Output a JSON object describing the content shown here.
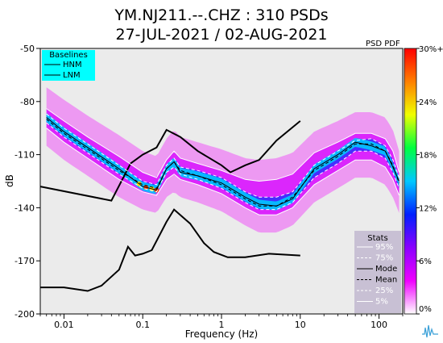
{
  "chart_data": {
    "type": "heatmap",
    "title": "YM.NJ211.--.CHZ : 310 PSDs",
    "subtitle": "27-JUL-2021 / 02-AUG-2021",
    "xlabel": "Frequency (Hz)",
    "ylabel": "dB",
    "x_scale": "log",
    "xlim": [
      0.005,
      200
    ],
    "ylim": [
      -200,
      -50
    ],
    "x_ticks": [
      0.01,
      0.1,
      1,
      10,
      100
    ],
    "x_tick_labels": [
      "0.01",
      "0.1",
      "1",
      "10",
      "100"
    ],
    "y_ticks": [
      -50,
      -80,
      -110,
      -140,
      -170,
      -200
    ],
    "y_tick_labels": [
      "-50",
      "-80",
      "-110",
      "-140",
      "-170",
      "-200"
    ],
    "colorbar": {
      "label": "PSD PDF",
      "ticks": [
        0,
        6,
        12,
        18,
        24,
        30
      ],
      "tick_labels": [
        "0%",
        "6%",
        "12%",
        "18%",
        "24%",
        "30%+"
      ],
      "colors": [
        "#ffffff",
        "#f000ff",
        "#8a00ff",
        "#0020ff",
        "#00c8ff",
        "#00ff40",
        "#f0ff00",
        "#ff8000",
        "#ff0000"
      ]
    },
    "baselines_legend": {
      "title": "Baselines",
      "items": [
        "HNM",
        "LNM"
      ]
    },
    "stats_legend": {
      "title": "Stats",
      "items": [
        {
          "label": "95%",
          "style": "solid",
          "color": "#ffffff"
        },
        {
          "label": "75%",
          "style": "dashed",
          "color": "#ffffff"
        },
        {
          "label": "Mode",
          "style": "solid",
          "color": "#000000"
        },
        {
          "label": "Mean",
          "style": "dashed",
          "color": "#000000"
        },
        {
          "label": "25%",
          "style": "dashed",
          "color": "#ffffff"
        },
        {
          "label": "5%",
          "style": "solid",
          "color": "#ffffff"
        }
      ]
    },
    "series": [
      {
        "name": "HNM",
        "x": [
          0.005,
          0.04,
          0.07,
          0.1,
          0.15,
          0.2,
          0.3,
          0.5,
          1,
          1.3,
          2,
          3,
          5,
          10
        ],
        "y": [
          -128,
          -136,
          -115,
          -110,
          -106,
          -96,
          -100,
          -108,
          -116,
          -120,
          -116,
          -113,
          -102,
          -91
        ]
      },
      {
        "name": "LNM",
        "x": [
          0.005,
          0.01,
          0.02,
          0.03,
          0.05,
          0.065,
          0.08,
          0.1,
          0.13,
          0.2,
          0.25,
          0.4,
          0.6,
          0.8,
          1.2,
          2,
          4,
          10
        ],
        "y": [
          -185,
          -185,
          -187,
          -184,
          -175,
          -162,
          -167,
          -166,
          -164,
          -148,
          -141,
          -149,
          -160,
          -165,
          -168,
          -168,
          -166,
          -167
        ]
      },
      {
        "name": "Mode",
        "x": [
          0.006,
          0.01,
          0.02,
          0.05,
          0.1,
          0.15,
          0.2,
          0.25,
          0.3,
          0.5,
          1,
          2,
          3,
          5,
          8,
          15,
          30,
          50,
          80,
          120,
          150,
          180
        ],
        "y": [
          -89,
          -97,
          -106,
          -118,
          -128,
          -130,
          -118,
          -114,
          -120,
          -122,
          -126,
          -134,
          -138,
          -139,
          -135,
          -118,
          -110,
          -103,
          -105,
          -108,
          -117,
          -125
        ]
      },
      {
        "name": "Mean",
        "x": [
          0.006,
          0.01,
          0.02,
          0.05,
          0.1,
          0.15,
          0.2,
          0.25,
          0.3,
          0.5,
          1,
          2,
          3,
          5,
          8,
          15,
          30,
          50,
          80,
          120,
          150,
          180
        ],
        "y": [
          -90,
          -98,
          -107,
          -119,
          -127,
          -129,
          -118,
          -114,
          -119,
          -122,
          -127,
          -135,
          -139,
          -139,
          -134,
          -119,
          -111,
          -104,
          -104,
          -108,
          -116,
          -126
        ]
      },
      {
        "name": "95%",
        "x": [
          0.006,
          0.01,
          0.02,
          0.05,
          0.1,
          0.15,
          0.2,
          0.25,
          0.3,
          0.5,
          1,
          2,
          3,
          5,
          8,
          15,
          30,
          50,
          80,
          120,
          150,
          180
        ],
        "y": [
          -84,
          -91,
          -100,
          -111,
          -120,
          -123,
          -113,
          -108,
          -112,
          -115,
          -119,
          -124,
          -125,
          -124,
          -121,
          -109,
          -103,
          -98,
          -98,
          -101,
          -108,
          -120
        ]
      },
      {
        "name": "75%",
        "x": [
          0.006,
          0.01,
          0.02,
          0.05,
          0.1,
          0.15,
          0.2,
          0.25,
          0.3,
          0.5,
          1,
          2,
          3,
          5,
          8,
          15,
          30,
          50,
          80,
          120,
          150,
          180
        ],
        "y": [
          -87,
          -95,
          -104,
          -116,
          -125,
          -127,
          -116,
          -112,
          -117,
          -119,
          -123,
          -131,
          -134,
          -134,
          -131,
          -116,
          -108,
          -102,
          -101,
          -105,
          -113,
          -123
        ]
      },
      {
        "name": "25%",
        "x": [
          0.006,
          0.01,
          0.02,
          0.05,
          0.1,
          0.15,
          0.2,
          0.25,
          0.3,
          0.5,
          1,
          2,
          3,
          5,
          8,
          15,
          30,
          50,
          80,
          120,
          150,
          180
        ],
        "y": [
          -92,
          -100,
          -109,
          -121,
          -129,
          -131,
          -120,
          -117,
          -121,
          -124,
          -129,
          -137,
          -141,
          -141,
          -137,
          -123,
          -115,
          -108,
          -108,
          -112,
          -120,
          -129
        ]
      },
      {
        "name": "5%",
        "x": [
          0.006,
          0.01,
          0.02,
          0.05,
          0.1,
          0.15,
          0.2,
          0.25,
          0.3,
          0.5,
          1,
          2,
          3,
          5,
          8,
          15,
          30,
          50,
          80,
          120,
          150,
          180
        ],
        "y": [
          -95,
          -103,
          -112,
          -124,
          -131,
          -133,
          -124,
          -121,
          -124,
          -127,
          -132,
          -140,
          -144,
          -144,
          -140,
          -127,
          -119,
          -113,
          -113,
          -117,
          -124,
          -133
        ]
      }
    ]
  }
}
